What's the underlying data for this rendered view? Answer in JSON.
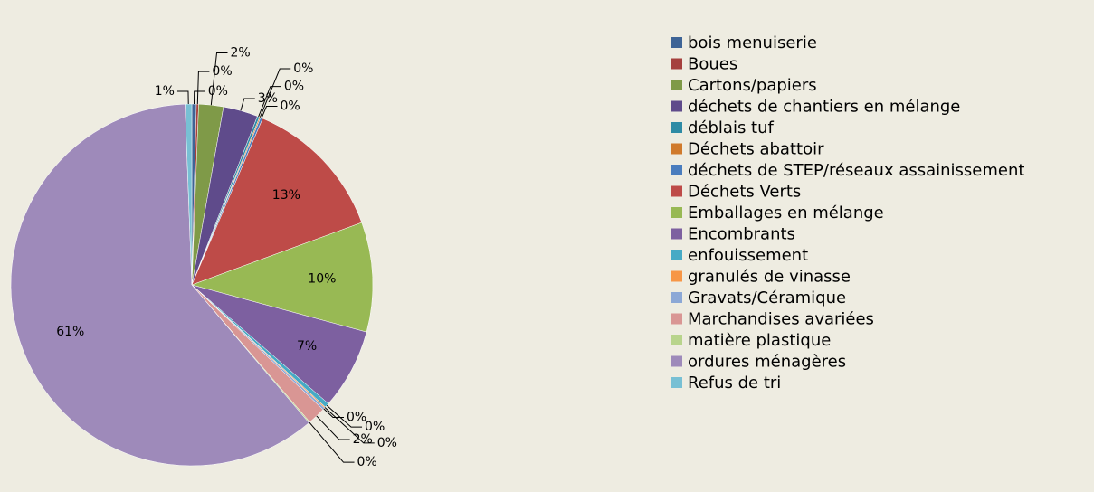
{
  "chart_data": {
    "type": "pie",
    "categories": [
      "bois menuiserie",
      "Boues",
      "Cartons/papiers",
      "déchets de chantiers en mélange",
      "déblais tuf",
      "Déchets abattoir",
      "déchets de STEP/réseaux assainissement",
      "Déchets Verts",
      "Emballages en mélange",
      "Encombrants",
      "enfouissement",
      "granulés de vinasse",
      "Gravats/Céramique",
      "Marchandises avariées",
      "matière plastique",
      "ordures ménagères",
      "Refus de tri"
    ],
    "values": [
      0.4,
      0.2,
      2.2,
      3.1,
      0.2,
      0.1,
      0.2,
      13.0,
      9.8,
      7.2,
      0.4,
      0.1,
      0.2,
      1.6,
      0.1,
      60.6,
      0.6
    ],
    "value_labels": [
      "0%",
      "0%",
      "2%",
      "3%",
      "0%",
      "0%",
      "0%",
      "13%",
      "10%",
      "7%",
      "0%",
      "0%",
      "0%",
      "2%",
      "0%",
      "61%",
      "1%"
    ],
    "colors": [
      "#3E6496",
      "#A5403D",
      "#7F9A48",
      "#5F4B8B",
      "#2E8BA5",
      "#D07A2C",
      "#4A7DBE",
      "#BE4B48",
      "#98B954",
      "#7D60A0",
      "#46AAC5",
      "#F79646",
      "#8CA8D6",
      "#D99694",
      "#B8D48C",
      "#9E8ABA",
      "#78C0D4"
    ],
    "legend": "right"
  }
}
